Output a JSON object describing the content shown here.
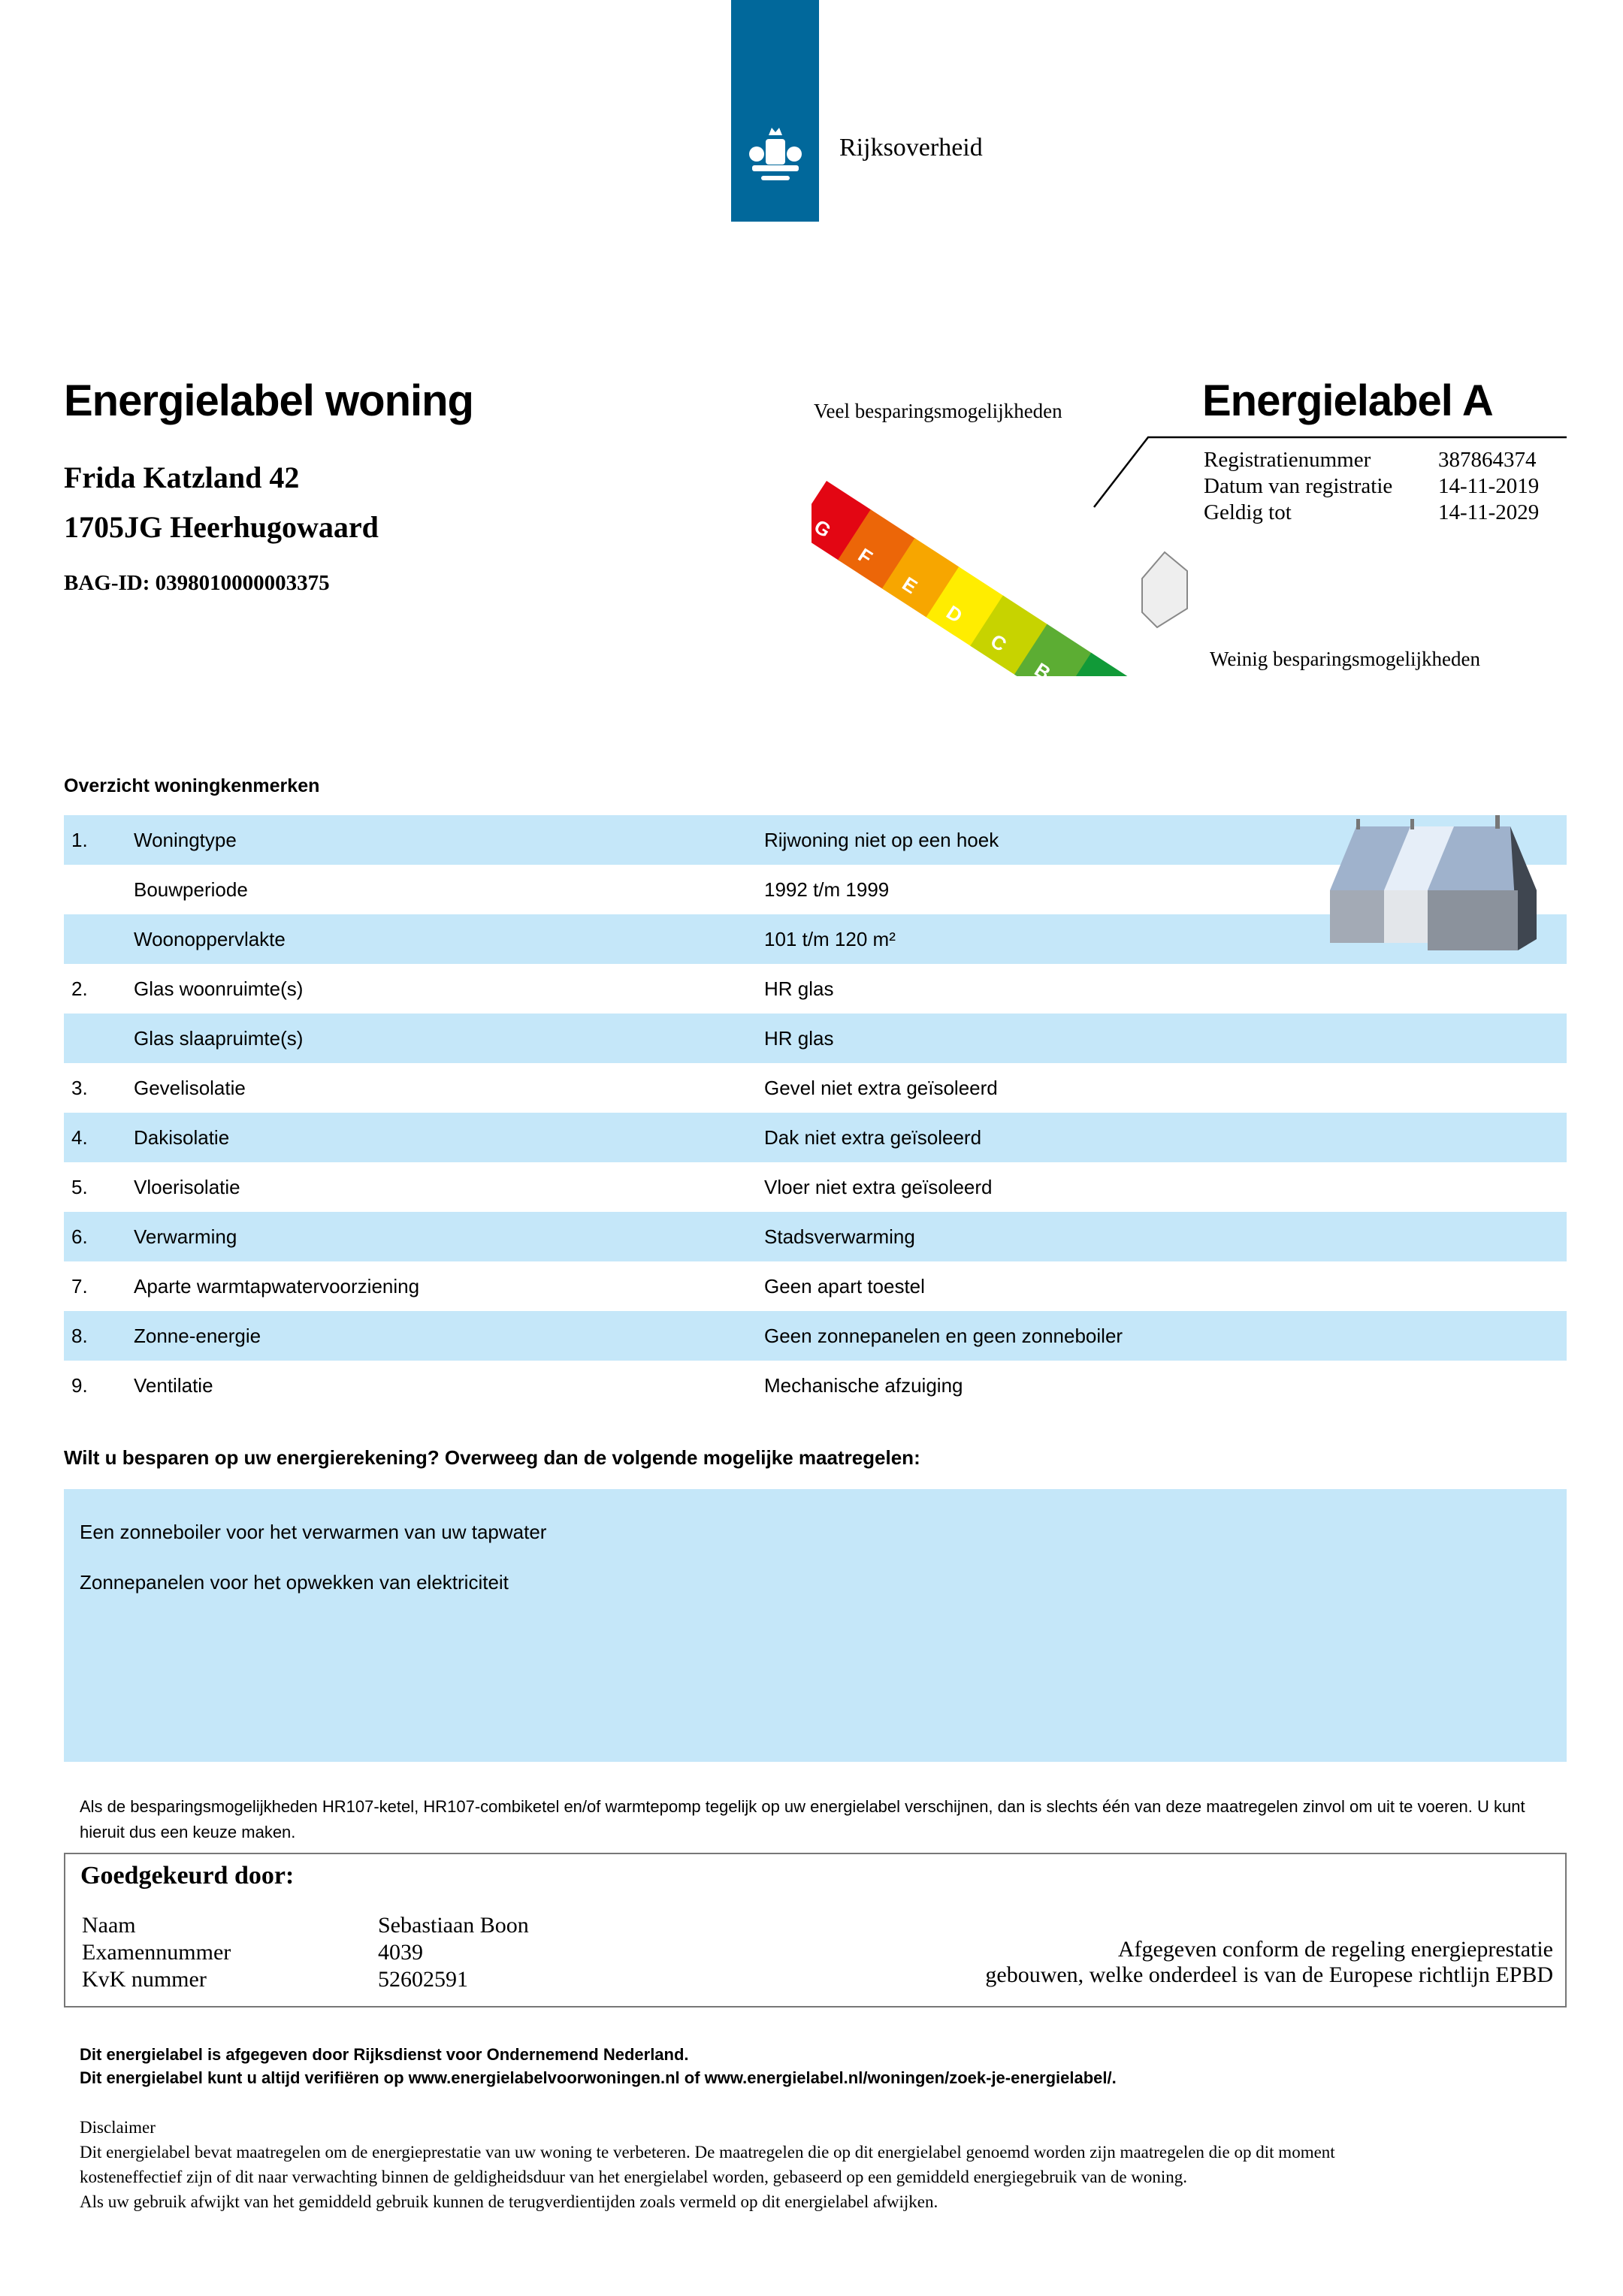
{
  "header": {
    "logo_text": "Rijksoverheid",
    "logo_color": "#01689b"
  },
  "title": "Energielabel woning",
  "address": {
    "street": "Frida Katzland 42",
    "city": "1705JG Heerhugowaard",
    "bag_id": "BAG-ID: 0398010000003375"
  },
  "label": {
    "top_caption": "Veel besparingsmogelijkheden",
    "bottom_caption": "Weinig besparingsmogelijkheden",
    "title": "Energielabel A",
    "current_class": "A",
    "classes": [
      {
        "letter": "G",
        "color": "#e30613"
      },
      {
        "letter": "F",
        "color": "#ec6608"
      },
      {
        "letter": "E",
        "color": "#f7a600"
      },
      {
        "letter": "D",
        "color": "#ffed00"
      },
      {
        "letter": "C",
        "color": "#c7d300"
      },
      {
        "letter": "B",
        "color": "#5cad33"
      },
      {
        "letter": "A",
        "color": "#119a38"
      }
    ],
    "registration": [
      {
        "key": "Registratienummer",
        "value": "387864374"
      },
      {
        "key": "Datum van registratie",
        "value": "14-11-2019"
      },
      {
        "key": "Geldig tot",
        "value": "14-11-2029"
      }
    ]
  },
  "overview": {
    "heading": "Overzicht woningkenmerken",
    "row_color": "#c5e7f9",
    "rows": [
      {
        "num": "1.",
        "label": "Woningtype",
        "value": "Rijwoning niet op een hoek"
      },
      {
        "num": "",
        "label": "Bouwperiode",
        "value": "1992 t/m 1999"
      },
      {
        "num": "",
        "label": "Woonoppervlakte",
        "value": "101 t/m 120 m²"
      },
      {
        "num": "2.",
        "label": "Glas woonruimte(s)",
        "value": "HR glas"
      },
      {
        "num": "",
        "label": "Glas slaapruimte(s)",
        "value": "HR glas"
      },
      {
        "num": "3.",
        "label": "Gevelisolatie",
        "value": "Gevel niet extra geïsoleerd"
      },
      {
        "num": "4.",
        "label": "Dakisolatie",
        "value": "Dak niet extra geïsoleerd"
      },
      {
        "num": "5.",
        "label": "Vloerisolatie",
        "value": "Vloer niet extra geïsoleerd"
      },
      {
        "num": "6.",
        "label": "Verwarming",
        "value": "Stadsverwarming"
      },
      {
        "num": "7.",
        "label": "Aparte warmtapwatervoorziening",
        "value": "Geen apart toestel"
      },
      {
        "num": "8.",
        "label": "Zonne-energie",
        "value": "Geen zonnepanelen en geen zonneboiler"
      },
      {
        "num": "9.",
        "label": "Ventilatie",
        "value": "Mechanische afzuiging"
      }
    ]
  },
  "advice": {
    "question": "Wilt u besparen op uw energierekening? Overweeg dan de volgende mogelijke maatregelen:",
    "items": [
      "Een zonneboiler voor het verwarmen van uw tapwater",
      "Zonnepanelen voor het opwekken van elektriciteit"
    ]
  },
  "note": "Als de besparingsmogelijkheden HR107-ketel, HR107-combiketel en/of warmtepomp tegelijk op uw energielabel verschijnen, dan is slechts één van deze maatregelen zinvol om uit te voeren. U kunt hieruit dus een keuze maken.",
  "approved": {
    "title": "Goedgekeurd door:",
    "rows": [
      {
        "key": "Naam",
        "value": "Sebastiaan Boon"
      },
      {
        "key": "Examennummer",
        "value": "4039"
      },
      {
        "key": "KvK nummer",
        "value": "52602591"
      }
    ],
    "conform_line1": "Afgegeven conform de regeling energieprestatie",
    "conform_line2": "gebouwen, welke onderdeel is van de Europese richtlijn EPBD"
  },
  "footer": {
    "issued": "Dit energielabel is afgegeven door Rijksdienst voor Ondernemend Nederland.",
    "verify": "Dit energielabel kunt u altijd verifiëren op www.energielabelvoorwoningen.nl of www.energielabel.nl/woningen/zoek-je-energielabel/.",
    "disclaimer_title": "Disclaimer",
    "disclaimer_lines": [
      "Dit energielabel bevat maatregelen om de energieprestatie van uw woning te verbeteren. De maatregelen die op dit energielabel genoemd worden zijn maatregelen die op dit moment",
      "kosteneffectief zijn of dit naar verwachting binnen de geldigheidsduur van het energielabel worden, gebaseerd op een gemiddeld energiegebruik van de woning.",
      "Als uw gebruik afwijkt van het gemiddeld gebruik kunnen de terugverdientijden zoals vermeld op dit energielabel afwijken."
    ]
  }
}
